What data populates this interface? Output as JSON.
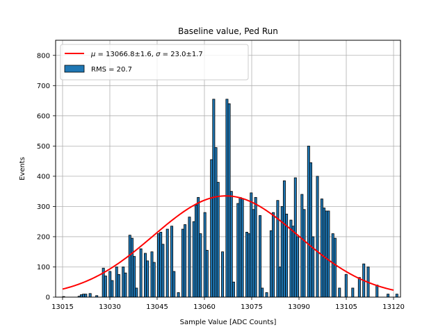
{
  "chart_data": {
    "type": "bar",
    "title": "Baseline value, Ped Run",
    "xlabel": "Sample Value [ADC Counts]",
    "ylabel": "Events",
    "xlim": [
      13012.8,
      13122.2
    ],
    "ylim": [
      0,
      850
    ],
    "xticks": [
      13015,
      13030,
      13045,
      13060,
      13075,
      13090,
      13105,
      13120
    ],
    "yticks": [
      0,
      100,
      200,
      300,
      400,
      500,
      600,
      700,
      800
    ],
    "grid": true,
    "legend_position": "top-left",
    "histogram": {
      "name": "RMS = 20.7",
      "color": "#1f77b4",
      "edge_color": "#000000",
      "bin_start": 13015,
      "bin_width": 0.7,
      "values": [
        2,
        0,
        0,
        0,
        0,
        0,
        0,
        3,
        8,
        10,
        10,
        0,
        12,
        0,
        0,
        5,
        0,
        0,
        96,
        70,
        0,
        85,
        55,
        0,
        100,
        75,
        0,
        100,
        80,
        0,
        205,
        195,
        135,
        30,
        0,
        160,
        0,
        145,
        120,
        0,
        150,
        115,
        0,
        210,
        215,
        175,
        0,
        225,
        0,
        235,
        85,
        0,
        15,
        0,
        225,
        240,
        0,
        265,
        0,
        250,
        305,
        330,
        210,
        0,
        280,
        155,
        0,
        455,
        655,
        495,
        380,
        0,
        150,
        0,
        655,
        640,
        350,
        50,
        0,
        310,
        330,
        325,
        0,
        215,
        210,
        345,
        290,
        330,
        0,
        270,
        30,
        0,
        15,
        0,
        220,
        280,
        0,
        320,
        100,
        300,
        385,
        275,
        0,
        255,
        235,
        395,
        200,
        0,
        340,
        290,
        0,
        500,
        445,
        200,
        0,
        400,
        0,
        325,
        295,
        285,
        285,
        0,
        210,
        195,
        0,
        30,
        0,
        0,
        75,
        0,
        0,
        30,
        0,
        0,
        65,
        0,
        110,
        0,
        100,
        0,
        0,
        0,
        40,
        0,
        0,
        0,
        0,
        10,
        0,
        0,
        0,
        10,
        0,
        0,
        0,
        0
      ]
    },
    "fit": {
      "name": "$\\mu = 13066.8{\\pm}1.6$, $\\sigma = 23.0{\\pm}1.7$",
      "mu": 13066.8,
      "sigma": 23.0,
      "amplitude": 335,
      "color": "#ff0000",
      "x_range": [
        13015,
        13120
      ]
    },
    "legend": [
      {
        "label_parts": [
          "μ",
          " = 13066.8±1.6, ",
          "σ",
          " = 23.0±1.7"
        ],
        "type": "line"
      },
      {
        "label": "RMS = 20.7",
        "type": "patch"
      }
    ]
  }
}
